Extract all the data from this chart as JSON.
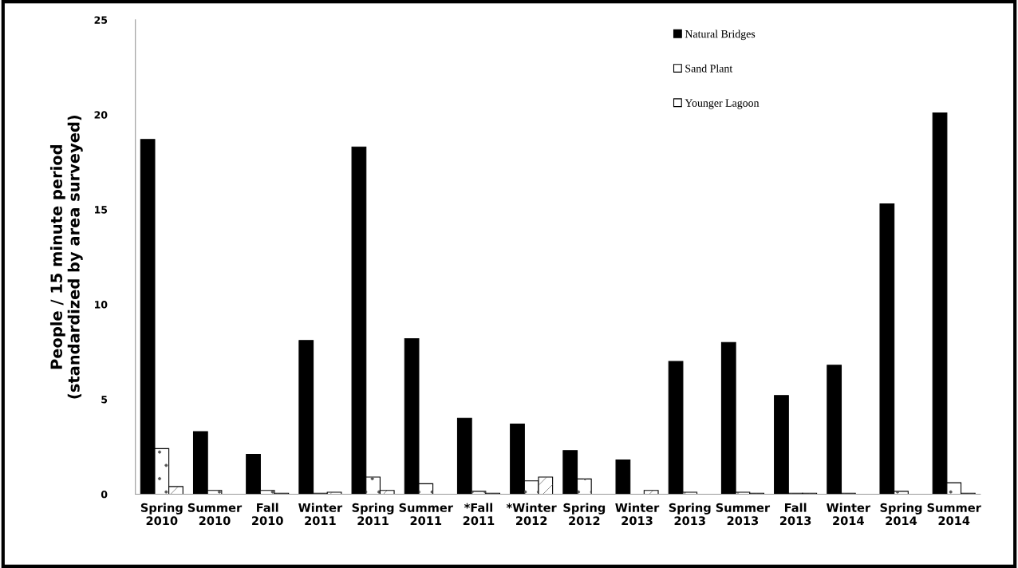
{
  "chart_data": {
    "type": "bar",
    "ylabel": "People / 15 minute period\n(standardized by area surveyed)",
    "categories": [
      "Spring\n2010",
      "Summer\n2010",
      "Fall\n2010",
      "Winter\n2011",
      "Spring\n2011",
      "Summer\n2011",
      "*Fall\n2011",
      "*Winter\n2012",
      "Spring\n2012",
      "Winter\n2013",
      "Spring\n2013",
      "Summer\n2013",
      "Fall\n2013",
      "Winter\n2014",
      "Spring\n2014",
      "Summer\n2014"
    ],
    "series": [
      {
        "name": "Natural Bridges",
        "color": "#000000",
        "values": [
          18.7,
          3.3,
          2.1,
          8.1,
          18.3,
          8.2,
          4.0,
          3.7,
          2.3,
          1.8,
          7.0,
          8.0,
          5.2,
          6.8,
          15.3,
          20.1
        ]
      },
      {
        "name": "Sand Plant",
        "color": "#ffffff",
        "values": [
          2.4,
          0.2,
          0.2,
          0.05,
          0.9,
          0.55,
          0.15,
          0.7,
          0.8,
          0,
          0.1,
          0.1,
          0.05,
          0.05,
          0.15,
          0.6
        ]
      },
      {
        "name": "Younger Lagoon",
        "color": "#ffffff",
        "values": [
          0.4,
          0,
          0.05,
          0.1,
          0.2,
          0,
          0.05,
          0.9,
          0,
          0.2,
          0,
          0.05,
          0.05,
          0,
          0,
          0.05
        ]
      }
    ],
    "ylim": [
      0,
      25
    ],
    "yticks": [
      0,
      5,
      10,
      15,
      20,
      25
    ],
    "grid": false,
    "legend": "top right"
  }
}
